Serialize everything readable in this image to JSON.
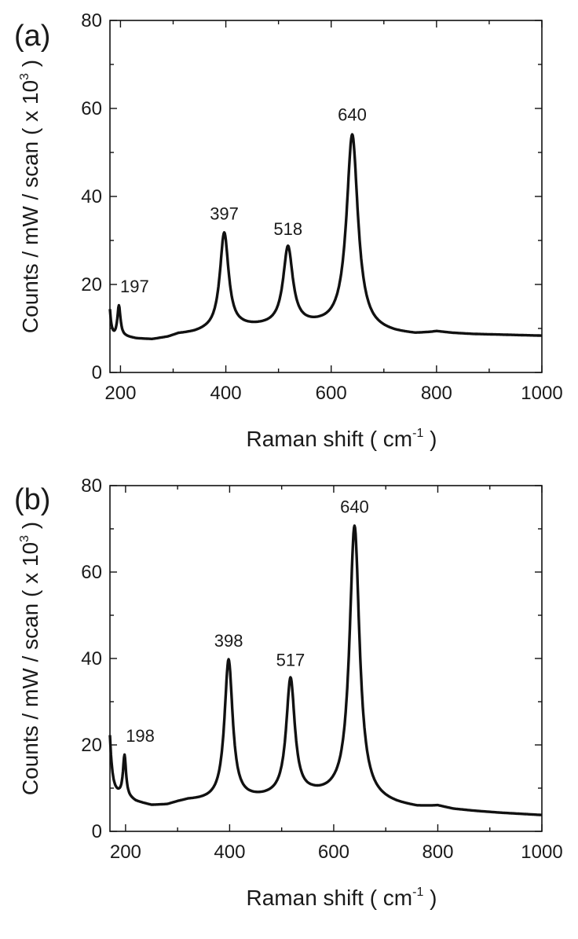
{
  "chart_data": [
    {
      "type": "line",
      "panel_label": "(a)",
      "xlabel": "Raman shift ( cm",
      "xlabel_sup": "-1",
      "xlabel_end": " )",
      "ylabel": "Counts / mW / scan ( x 10",
      "ylabel_sup": "3",
      "ylabel_end": " )",
      "xlim": [
        180,
        1000
      ],
      "ylim": [
        0,
        80
      ],
      "xticks": [
        200,
        400,
        600,
        800,
        1000
      ],
      "yticks": [
        0,
        20,
        40,
        60,
        80
      ],
      "grid": false,
      "color": "#111111",
      "peak_labels": [
        {
          "text": "197",
          "x": 197,
          "y": 15
        },
        {
          "text": "397",
          "x": 397,
          "y": 31.5
        },
        {
          "text": "518",
          "x": 518,
          "y": 28
        },
        {
          "text": "640",
          "x": 640,
          "y": 54
        }
      ],
      "baseline": [
        [
          180,
          7.5
        ],
        [
          190,
          7.9
        ],
        [
          200,
          8.2
        ],
        [
          210,
          8.0
        ],
        [
          230,
          7.6
        ],
        [
          260,
          7.4
        ],
        [
          290,
          7.9
        ],
        [
          310,
          8.6
        ],
        [
          340,
          8.8
        ],
        [
          360,
          9.1
        ],
        [
          380,
          9.3
        ],
        [
          400,
          9.6
        ],
        [
          430,
          10.0
        ],
        [
          470,
          10.2
        ],
        [
          500,
          10.3
        ],
        [
          540,
          10.4
        ],
        [
          580,
          10.3
        ],
        [
          620,
          10.0
        ],
        [
          650,
          9.6
        ],
        [
          680,
          9.1
        ],
        [
          720,
          8.7
        ],
        [
          760,
          8.5
        ],
        [
          790,
          8.9
        ],
        [
          800,
          9.1
        ],
        [
          830,
          8.8
        ],
        [
          870,
          8.6
        ],
        [
          920,
          8.5
        ],
        [
          1000,
          8.3
        ]
      ],
      "peaks": [
        {
          "center": 197,
          "height": 7.0,
          "width": 3.5
        },
        {
          "center": 397,
          "height": 22.0,
          "width": 10
        },
        {
          "center": 518,
          "height": 17.8,
          "width": 11
        },
        {
          "center": 640,
          "height": 44.2,
          "width": 13
        }
      ],
      "rise": {
        "x0": 180,
        "y0": 14.0,
        "decay": 3.5
      }
    },
    {
      "type": "line",
      "panel_label": "(b)",
      "xlabel": "Raman shift ( cm",
      "xlabel_sup": "-1",
      "xlabel_end": " )",
      "ylabel": "Counts / mW / scan ( x 10",
      "ylabel_sup": "3",
      "ylabel_end": " )",
      "xlim": [
        170,
        1000
      ],
      "ylim": [
        0,
        80
      ],
      "xticks": [
        200,
        400,
        600,
        800,
        1000
      ],
      "yticks": [
        0,
        20,
        40,
        60,
        80
      ],
      "grid": false,
      "color": "#111111",
      "peak_labels": [
        {
          "text": "198",
          "x": 198,
          "y": 17.5
        },
        {
          "text": "398",
          "x": 398,
          "y": 39.5
        },
        {
          "text": "517",
          "x": 517,
          "y": 35
        },
        {
          "text": "640",
          "x": 640,
          "y": 70.5
        }
      ],
      "baseline": [
        [
          170,
          9.5
        ],
        [
          180,
          9.0
        ],
        [
          200,
          8.0
        ],
        [
          220,
          6.8
        ],
        [
          250,
          5.9
        ],
        [
          280,
          6.0
        ],
        [
          300,
          6.6
        ],
        [
          320,
          7.0
        ],
        [
          350,
          6.9
        ],
        [
          380,
          6.8
        ],
        [
          400,
          6.9
        ],
        [
          440,
          7.2
        ],
        [
          480,
          7.5
        ],
        [
          520,
          7.8
        ],
        [
          560,
          8.0
        ],
        [
          600,
          7.8
        ],
        [
          640,
          7.3
        ],
        [
          680,
          6.6
        ],
        [
          720,
          5.9
        ],
        [
          760,
          5.4
        ],
        [
          790,
          5.6
        ],
        [
          800,
          5.7
        ],
        [
          830,
          5.0
        ],
        [
          870,
          4.6
        ],
        [
          920,
          4.2
        ],
        [
          1000,
          3.7
        ]
      ],
      "peaks": [
        {
          "center": 198,
          "height": 9.5,
          "width": 3.5
        },
        {
          "center": 398,
          "height": 32.6,
          "width": 9.5
        },
        {
          "center": 517,
          "height": 27.1,
          "width": 10
        },
        {
          "center": 640,
          "height": 63.2,
          "width": 11.5
        }
      ],
      "rise": {
        "x0": 170,
        "y0": 22.0,
        "decay": 4.5
      }
    }
  ]
}
